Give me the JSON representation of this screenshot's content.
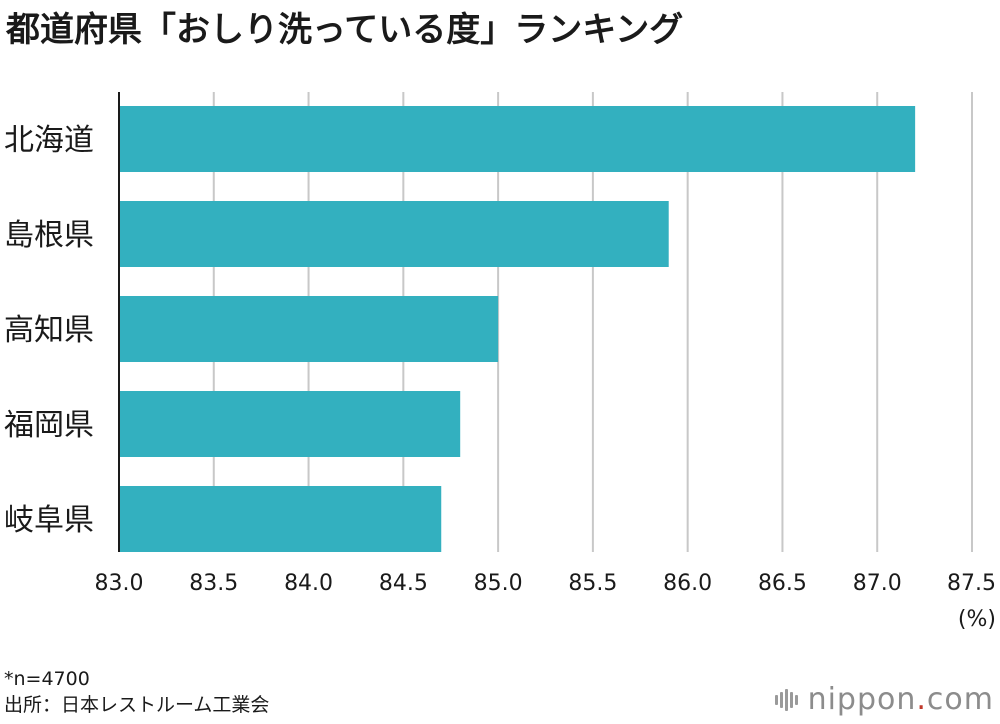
{
  "chart_data": {
    "type": "bar",
    "orientation": "horizontal",
    "title": "都道府県「おしり洗っている度」ランキング",
    "categories": [
      "北海道",
      "島根県",
      "高知県",
      "福岡県",
      "岐阜県"
    ],
    "values": [
      87.2,
      85.9,
      85.0,
      84.8,
      84.7
    ],
    "xlim": [
      83.0,
      87.5
    ],
    "xticks": [
      "83.0",
      "83.5",
      "84.0",
      "84.5",
      "85.0",
      "85.5",
      "86.0",
      "86.5",
      "87.0",
      "87.5"
    ],
    "xunit": "(%)",
    "grid": true,
    "bar_color": "#33b0bf",
    "grid_color": "#c8c8c8"
  },
  "footnote": {
    "n": "*n=4700",
    "source": "出所：日本レストルーム工業会"
  },
  "brand": {
    "name": "nippon",
    "dot": ".",
    "tld": "com"
  }
}
